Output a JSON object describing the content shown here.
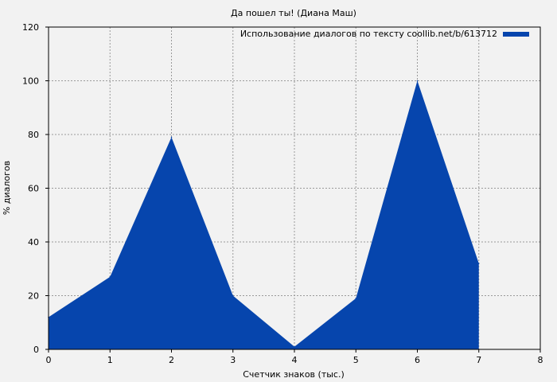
{
  "chart_data": {
    "type": "area",
    "title": "Да пошел ты! (Диана Маш)",
    "xlabel": "Счетчик знаков (тыс.)",
    "ylabel": "% диалогов",
    "xlim": [
      0,
      8
    ],
    "ylim": [
      0,
      120
    ],
    "xticks": [
      0,
      1,
      2,
      3,
      4,
      5,
      6,
      7,
      8
    ],
    "yticks": [
      0,
      20,
      40,
      60,
      80,
      100,
      120
    ],
    "grid": true,
    "legend_position": "top-right",
    "series": [
      {
        "name": "Использование диалогов по тексту coollib.net/b/613712",
        "color": "#0645ad",
        "x": [
          0,
          1,
          2,
          3,
          4,
          5,
          6,
          7
        ],
        "values": [
          12,
          27,
          79,
          20,
          1,
          19,
          100,
          32
        ]
      }
    ]
  }
}
